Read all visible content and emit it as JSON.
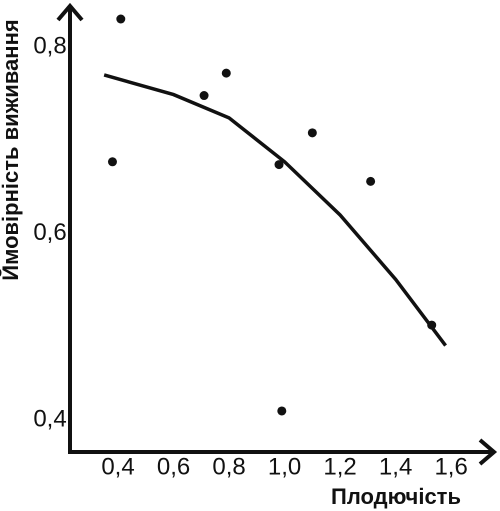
{
  "chart_data": {
    "type": "scatter",
    "x_label": "Плодючість",
    "y_label": "Ймовірність виживання",
    "points": {
      "color": "#111111",
      "x": [
        0.41,
        0.38,
        0.71,
        0.79,
        0.98,
        1.1,
        1.31,
        1.53,
        0.99
      ],
      "y": [
        0.83,
        0.677,
        0.748,
        0.772,
        0.674,
        0.708,
        0.656,
        0.502,
        0.41
      ]
    },
    "curve": {
      "color": "#111111",
      "x": [
        0.35,
        0.6,
        0.8,
        1.0,
        1.2,
        1.4,
        1.58
      ],
      "y": [
        0.77,
        0.749,
        0.724,
        0.677,
        0.62,
        0.551,
        0.48
      ]
    },
    "xlim": [
      0.227,
      1.74
    ],
    "ylim": [
      0.366,
      0.845
    ],
    "xticks": [
      {
        "value": 0.4,
        "label": "0,4"
      },
      {
        "value": 0.6,
        "label": "0,6"
      },
      {
        "value": 0.8,
        "label": "0,8"
      },
      {
        "value": 1.0,
        "label": "1,0"
      },
      {
        "value": 1.2,
        "label": "1,2"
      },
      {
        "value": 1.4,
        "label": "1,4"
      },
      {
        "value": 1.6,
        "label": "1,6"
      }
    ],
    "yticks": [
      {
        "value": 0.4,
        "label": "0,4"
      },
      {
        "value": 0.6,
        "label": "0,6"
      },
      {
        "value": 0.8,
        "label": "0,8"
      }
    ],
    "grid": false
  }
}
